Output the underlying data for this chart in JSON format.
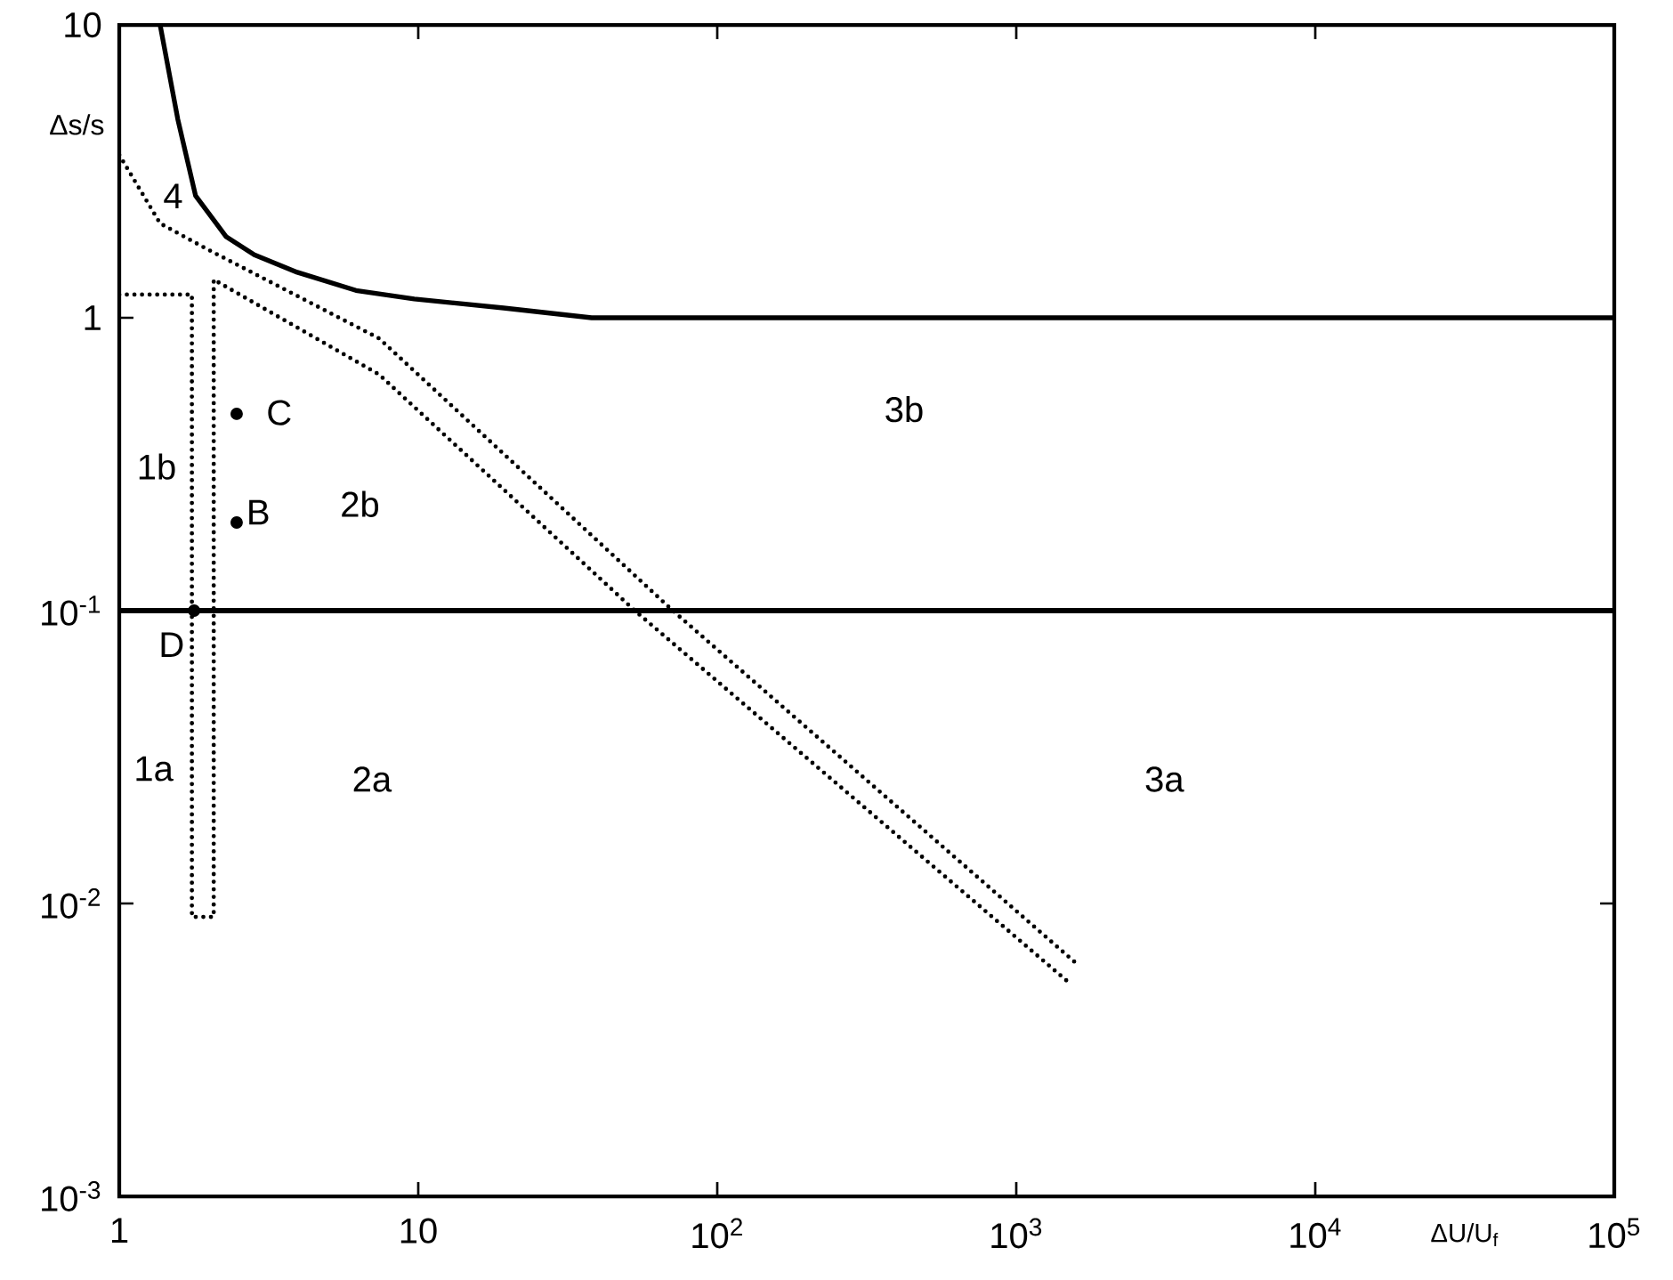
{
  "chart_data": {
    "type": "line",
    "log": "xy",
    "marker": "none",
    "xlabel": "ΔU/U$_{f}$",
    "ylabel": "Δs/s",
    "xlim": [
      1,
      100000
    ],
    "ylim": [
      0.001,
      10
    ],
    "xticks": [
      1,
      10,
      {
        "value": 100,
        "label": "10$^{2}$"
      },
      {
        "value": 1000,
        "label": "10$^{3}$"
      },
      {
        "value": 10000,
        "label": "10$^{4}$"
      },
      {
        "value": 100000,
        "label": "10$^{5}$"
      }
    ],
    "yticks": [
      {
        "value": 0.001,
        "label": "10$^{-3}$"
      },
      {
        "value": 0.01,
        "label": "10$^{-2}$"
      },
      {
        "value": 0.1,
        "label": "10$^{-1}$"
      },
      1,
      10
    ],
    "series": [
      {
        "line_style": "solid",
        "color": "#000000",
        "x": [
          1.37,
          1.57,
          1.8,
          2.28,
          2.83,
          3.94,
          6.19,
          9.7,
          19.3,
          38,
          100000
        ],
        "values": [
          10,
          4.76,
          2.61,
          1.89,
          1.64,
          1.43,
          1.24,
          1.16,
          1.08,
          1.0,
          1.0
        ]
      },
      {
        "line_style": "dotted",
        "color": "#000000",
        "x": [
          1,
          1.37,
          1.98,
          7.4,
          71,
          1600
        ],
        "values": [
          3.6,
          2.1,
          1.71,
          0.85,
          0.1,
          0.0062
        ]
      },
      {
        "line_style": "dotted",
        "color": "#000000",
        "x": [
          1,
          1.75,
          1.75,
          2.07,
          2.07,
          7.4,
          53,
          1490
        ],
        "values": [
          1.2,
          1.2,
          0.009,
          0.009,
          1.35,
          0.64,
          0.1,
          0.0054
        ]
      },
      {
        "type": "scatter",
        "marker": "circle",
        "color": "#000000",
        "x": [
          2.47,
          2.47,
          1.78
        ],
        "values": [
          0.47,
          0.2,
          0.1
        ]
      }
    ],
    "ref_lines": [
      {
        "axis": "y",
        "value": 0.1,
        "color": "#000000",
        "line_style": "solid"
      }
    ],
    "annotations": [
      "4",
      "1b",
      "2b",
      "3b",
      "C",
      "B",
      "D",
      "1a",
      "2a",
      "3a"
    ]
  }
}
